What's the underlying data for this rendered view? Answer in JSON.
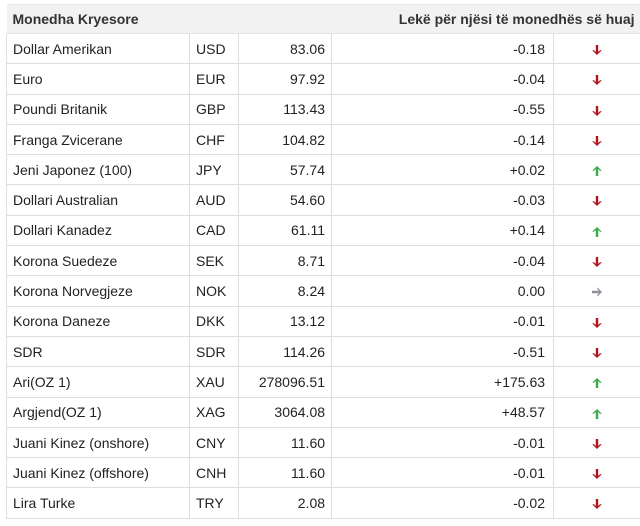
{
  "header": {
    "currency_col": "Monedha Kryesore",
    "rate_col": "Lekë për njësi të monedhës së huaj"
  },
  "colors": {
    "down": "#b0131e",
    "up": "#3aa94a",
    "flat": "#8a8f96"
  },
  "rows": [
    {
      "name": "Dollar Amerikan",
      "code": "USD",
      "rate": "83.06",
      "change": "-0.18",
      "trend": "down"
    },
    {
      "name": "Euro",
      "code": "EUR",
      "rate": "97.92",
      "change": "-0.04",
      "trend": "down"
    },
    {
      "name": "Poundi Britanik",
      "code": "GBP",
      "rate": "113.43",
      "change": "-0.55",
      "trend": "down"
    },
    {
      "name": "Franga Zvicerane",
      "code": "CHF",
      "rate": "104.82",
      "change": "-0.14",
      "trend": "down"
    },
    {
      "name": "Jeni Japonez (100)",
      "code": "JPY",
      "rate": "57.74",
      "change": "+0.02",
      "trend": "up"
    },
    {
      "name": "Dollari Australian",
      "code": "AUD",
      "rate": "54.60",
      "change": "-0.03",
      "trend": "down"
    },
    {
      "name": "Dollari Kanadez",
      "code": "CAD",
      "rate": "61.11",
      "change": "+0.14",
      "trend": "up"
    },
    {
      "name": "Korona Suedeze",
      "code": "SEK",
      "rate": "8.71",
      "change": "-0.04",
      "trend": "down"
    },
    {
      "name": "Korona Norvegjeze",
      "code": "NOK",
      "rate": "8.24",
      "change": "0.00",
      "trend": "flat"
    },
    {
      "name": "Korona Daneze",
      "code": "DKK",
      "rate": "13.12",
      "change": "-0.01",
      "trend": "down"
    },
    {
      "name": "SDR",
      "code": "SDR",
      "rate": "114.26",
      "change": "-0.51",
      "trend": "down"
    },
    {
      "name": "Ari(OZ 1)",
      "code": "XAU",
      "rate": "278096.51",
      "change": "+175.63",
      "trend": "up"
    },
    {
      "name": "Argjend(OZ 1)",
      "code": "XAG",
      "rate": "3064.08",
      "change": "+48.57",
      "trend": "up"
    },
    {
      "name": "Juani Kinez (onshore)",
      "code": "CNY",
      "rate": "11.60",
      "change": "-0.01",
      "trend": "down"
    },
    {
      "name": "Juani Kinez (offshore)",
      "code": "CNH",
      "rate": "11.60",
      "change": "-0.01",
      "trend": "down"
    },
    {
      "name": "Lira Turke",
      "code": "TRY",
      "rate": "2.08",
      "change": "-0.02",
      "trend": "down"
    }
  ]
}
